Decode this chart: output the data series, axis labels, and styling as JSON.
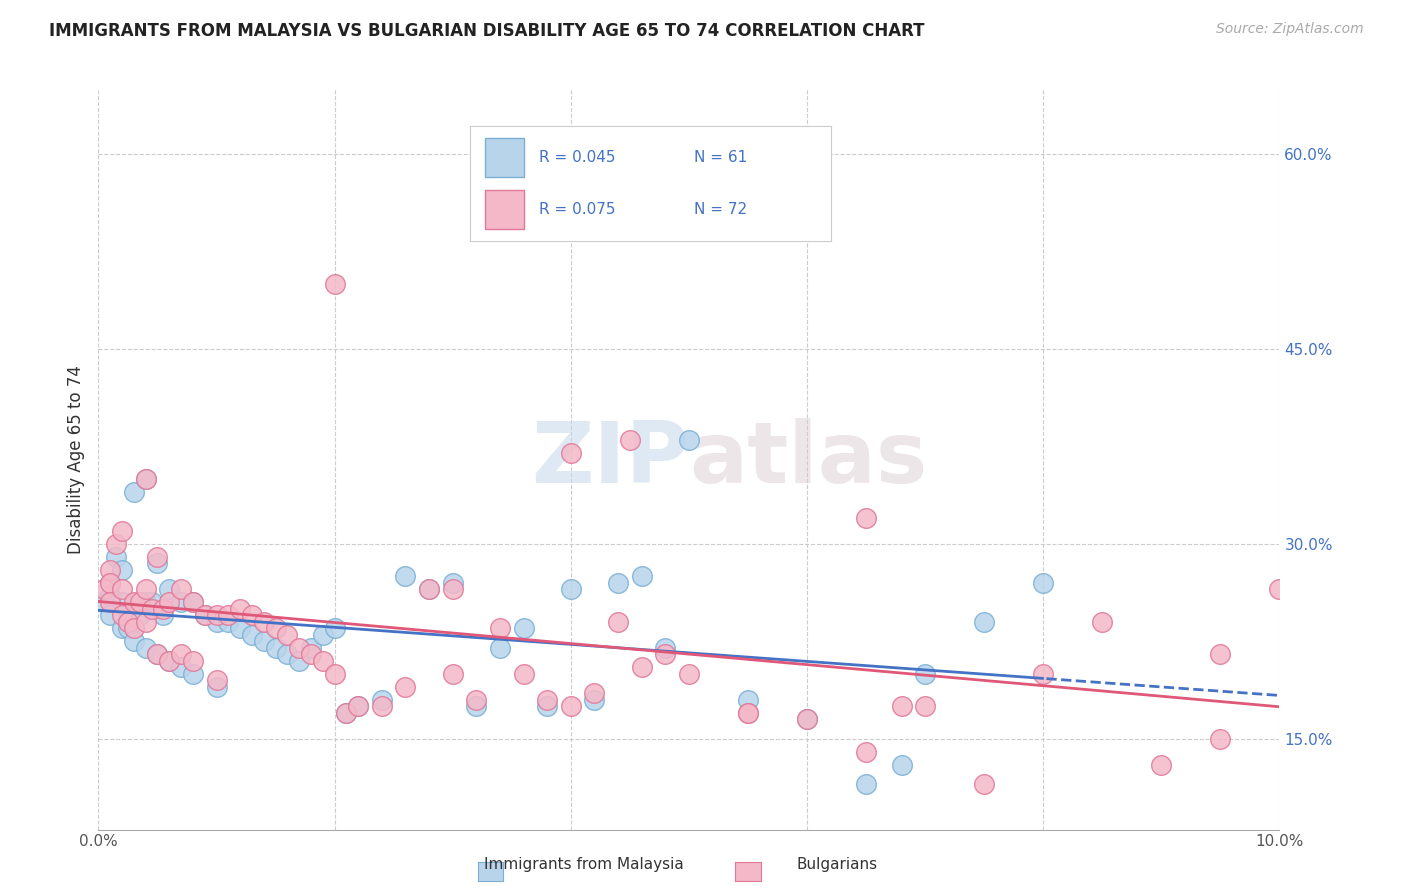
{
  "title": "IMMIGRANTS FROM MALAYSIA VS BULGARIAN DISABILITY AGE 65 TO 74 CORRELATION CHART",
  "source": "Source: ZipAtlas.com",
  "ylabel": "Disability Age 65 to 74",
  "x_min": 0.0,
  "x_max": 0.1,
  "y_min": 0.08,
  "y_max": 0.65,
  "x_tick_positions": [
    0.0,
    0.02,
    0.04,
    0.06,
    0.08,
    0.1
  ],
  "x_tick_labels": [
    "0.0%",
    "",
    "",
    "",
    "",
    "10.0%"
  ],
  "y_ticks_right": [
    0.15,
    0.3,
    0.45,
    0.6
  ],
  "y_tick_labels_right": [
    "15.0%",
    "30.0%",
    "45.0%",
    "60.0%"
  ],
  "series1_label": "Immigrants from Malaysia",
  "series1_color": "#b8d4eb",
  "series1_edge_color": "#7ab0d4",
  "series1_R": "0.045",
  "series1_N": "61",
  "series2_label": "Bulgarians",
  "series2_color": "#f4b8c8",
  "series2_edge_color": "#e07898",
  "series2_R": "0.075",
  "series2_N": "72",
  "trend1_color": "#4472c4",
  "trend2_color": "#e05878",
  "watermark_zip": "ZIP",
  "watermark_atlas": "atlas",
  "blue_scatter_x": [
    0.0005,
    0.001,
    0.001,
    0.001,
    0.0015,
    0.002,
    0.002,
    0.002,
    0.0025,
    0.003,
    0.003,
    0.0035,
    0.004,
    0.004,
    0.004,
    0.0045,
    0.005,
    0.005,
    0.0055,
    0.006,
    0.006,
    0.007,
    0.007,
    0.008,
    0.008,
    0.009,
    0.01,
    0.01,
    0.011,
    0.012,
    0.013,
    0.014,
    0.015,
    0.016,
    0.017,
    0.018,
    0.019,
    0.02,
    0.021,
    0.022,
    0.024,
    0.026,
    0.028,
    0.03,
    0.032,
    0.034,
    0.036,
    0.038,
    0.04,
    0.042,
    0.044,
    0.046,
    0.048,
    0.05,
    0.055,
    0.06,
    0.065,
    0.068,
    0.07,
    0.075,
    0.08
  ],
  "blue_scatter_y": [
    0.255,
    0.27,
    0.26,
    0.245,
    0.29,
    0.255,
    0.235,
    0.28,
    0.235,
    0.225,
    0.34,
    0.245,
    0.255,
    0.22,
    0.35,
    0.255,
    0.285,
    0.215,
    0.245,
    0.265,
    0.21,
    0.255,
    0.205,
    0.255,
    0.2,
    0.245,
    0.24,
    0.19,
    0.24,
    0.235,
    0.23,
    0.225,
    0.22,
    0.215,
    0.21,
    0.22,
    0.23,
    0.235,
    0.17,
    0.175,
    0.18,
    0.275,
    0.265,
    0.27,
    0.175,
    0.22,
    0.235,
    0.175,
    0.265,
    0.18,
    0.27,
    0.275,
    0.22,
    0.38,
    0.18,
    0.165,
    0.115,
    0.13,
    0.2,
    0.24,
    0.27
  ],
  "pink_scatter_x": [
    0.0005,
    0.001,
    0.001,
    0.001,
    0.0015,
    0.002,
    0.002,
    0.002,
    0.0025,
    0.003,
    0.003,
    0.0035,
    0.004,
    0.004,
    0.004,
    0.0045,
    0.005,
    0.005,
    0.0055,
    0.006,
    0.006,
    0.007,
    0.007,
    0.008,
    0.008,
    0.009,
    0.01,
    0.01,
    0.011,
    0.012,
    0.013,
    0.014,
    0.015,
    0.016,
    0.017,
    0.018,
    0.019,
    0.02,
    0.021,
    0.022,
    0.024,
    0.026,
    0.028,
    0.03,
    0.032,
    0.034,
    0.036,
    0.038,
    0.04,
    0.042,
    0.044,
    0.046,
    0.048,
    0.05,
    0.055,
    0.06,
    0.065,
    0.068,
    0.07,
    0.075,
    0.08,
    0.085,
    0.09,
    0.095,
    0.04,
    0.055,
    0.065,
    0.02,
    0.03,
    0.045,
    0.095,
    0.1
  ],
  "pink_scatter_y": [
    0.265,
    0.28,
    0.27,
    0.255,
    0.3,
    0.265,
    0.245,
    0.31,
    0.24,
    0.235,
    0.255,
    0.255,
    0.265,
    0.24,
    0.35,
    0.25,
    0.29,
    0.215,
    0.25,
    0.255,
    0.21,
    0.265,
    0.215,
    0.255,
    0.21,
    0.245,
    0.245,
    0.195,
    0.245,
    0.25,
    0.245,
    0.24,
    0.235,
    0.23,
    0.22,
    0.215,
    0.21,
    0.2,
    0.17,
    0.175,
    0.175,
    0.19,
    0.265,
    0.265,
    0.18,
    0.235,
    0.2,
    0.18,
    0.175,
    0.185,
    0.24,
    0.205,
    0.215,
    0.2,
    0.17,
    0.165,
    0.14,
    0.175,
    0.175,
    0.115,
    0.2,
    0.24,
    0.13,
    0.215,
    0.37,
    0.17,
    0.32,
    0.5,
    0.2,
    0.38,
    0.15,
    0.265
  ]
}
